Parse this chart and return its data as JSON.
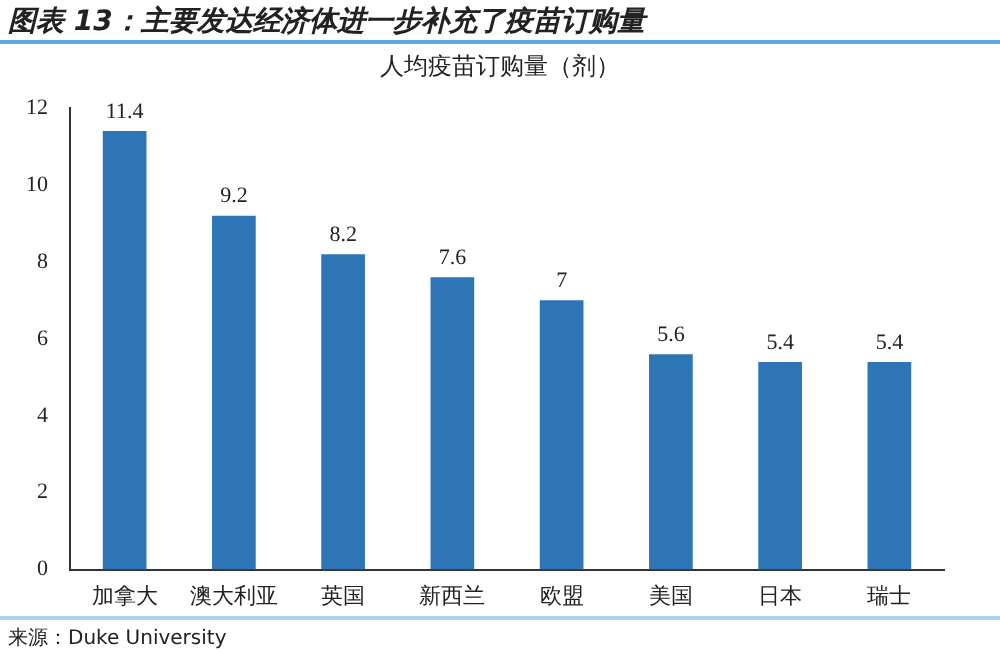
{
  "chart_data": {
    "type": "bar",
    "title": "图表 13：主要发达经济体进一步补充了疫苗订购量",
    "subtitle": "人均疫苗订购量（剂）",
    "categories": [
      "加拿大",
      "澳大利亚",
      "英国",
      "新西兰",
      "欧盟",
      "美国",
      "日本",
      "瑞士"
    ],
    "values": [
      11.4,
      9.2,
      8.2,
      7.6,
      7,
      5.6,
      5.4,
      5.4
    ],
    "color": "#2e75b6",
    "ylim": [
      0,
      12
    ],
    "yticks": [
      0,
      2,
      4,
      6,
      8,
      10,
      12
    ],
    "grid": false,
    "data_labels": true,
    "annotations": [
      "来源：Duke University"
    ]
  }
}
